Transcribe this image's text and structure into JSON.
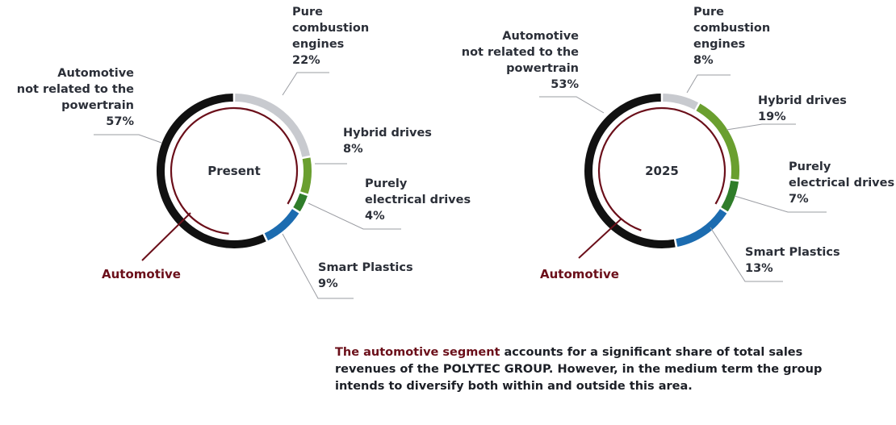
{
  "colors": {
    "automotive": "#6b0f1a",
    "combustion": "#c8cacf",
    "hybrid": "#6a9f2f",
    "electrical": "#2f7d2a",
    "smart_plastics": "#1c6cb0",
    "non_powertrain": "#111111",
    "leader": "#9a9ca2"
  },
  "chart_data": [
    {
      "type": "pie",
      "center_label": "Present",
      "automotive_label": "Automotive",
      "slices": [
        {
          "key": "combustion",
          "lines": [
            "Pure",
            "combustion",
            "engines"
          ],
          "value": 22
        },
        {
          "key": "hybrid",
          "lines": [
            "Hybrid drives"
          ],
          "value": 8
        },
        {
          "key": "electrical",
          "lines": [
            "Purely",
            "electrical drives"
          ],
          "value": 4
        },
        {
          "key": "smart_plastics",
          "lines": [
            "Smart Plastics"
          ],
          "value": 9
        },
        {
          "key": "non_powertrain",
          "lines": [
            "Automotive",
            "not related to the",
            "powertrain"
          ],
          "value": 57
        }
      ]
    },
    {
      "type": "pie",
      "center_label": "2025",
      "automotive_label": "Automotive",
      "slices": [
        {
          "key": "combustion",
          "lines": [
            "Pure",
            "combustion",
            "engines"
          ],
          "value": 8
        },
        {
          "key": "hybrid",
          "lines": [
            "Hybrid drives"
          ],
          "value": 19
        },
        {
          "key": "electrical",
          "lines": [
            "Purely",
            "electrical drives"
          ],
          "value": 7
        },
        {
          "key": "smart_plastics",
          "lines": [
            "Smart Plastics"
          ],
          "value": 13
        },
        {
          "key": "non_powertrain",
          "lines": [
            "Automotive",
            "not related to the",
            "powertrain"
          ],
          "value": 53
        }
      ]
    }
  ],
  "caption": {
    "highlight": "The automotive segment",
    "text": " accounts for a significant share of total sales revenues of the POLYTEC GROUP. However, in the medium term the group intends to diversify both within and outside this area."
  }
}
